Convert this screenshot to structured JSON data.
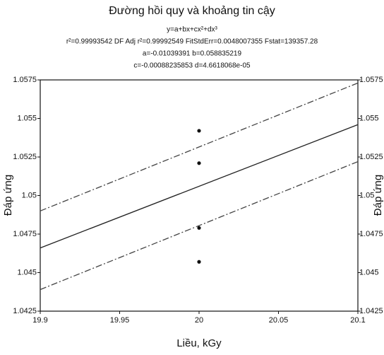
{
  "chart_data": {
    "type": "line",
    "title": "Đường hồi quy và khoảng tin cậy",
    "subtitle": "y=a+bx+cx²+dx³",
    "annotations": [
      "r²=0.99993542  DF Adj r²=0.99992549  FitStdErr=0.0048007355  Fstat=139357.28",
      "a=-0.01039391 b=0.058835219",
      "c=-0.00088235853 d=4.6618068e-05"
    ],
    "xlabel": "Liều, kGy",
    "ylabel": "Đáp ứng",
    "y2label": "Đáp ứng",
    "x": [
      19.9,
      20.1
    ],
    "series": [
      {
        "color": "#222222",
        "dash": false,
        "values": [
          1.0466,
          1.0546
        ]
      },
      {
        "color": "#444444",
        "dash": true,
        "values": [
          1.049,
          1.0573
        ]
      },
      {
        "color": "#444444",
        "dash": true,
        "values": [
          1.0439,
          1.0522
        ]
      }
    ],
    "points": {
      "color": "#111111",
      "x": [
        20,
        20,
        20,
        20
      ],
      "y": [
        1.0542,
        1.0521,
        1.0479,
        1.0457
      ]
    },
    "xlim": [
      19.9,
      20.1
    ],
    "xticks": [
      19.9,
      19.95,
      20,
      20.05,
      20.1
    ],
    "ylim": [
      1.0425,
      1.0575
    ],
    "yticks": [
      1.0425,
      1.045,
      1.0475,
      1.05,
      1.0525,
      1.055,
      1.0575
    ],
    "y2lim": [
      1.0425,
      1.0575
    ],
    "y2ticks": [
      1.0425,
      1.045,
      1.0475,
      1.05,
      1.0525,
      1.055,
      1.0575
    ]
  }
}
